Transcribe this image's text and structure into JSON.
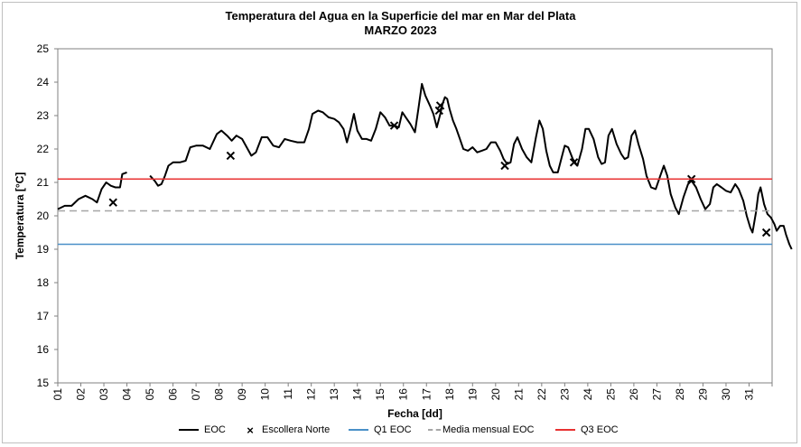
{
  "chart_data": {
    "type": "line",
    "title": "Temperatura del Agua en la Superficie del mar en Mar del Plata",
    "subtitle": "MARZO 2023",
    "xlabel": "Fecha [dd]",
    "ylabel": "Temperatura [°C]",
    "xlim": [
      1,
      32
    ],
    "ylim": [
      15,
      25
    ],
    "x_ticks": [
      "01",
      "02",
      "03",
      "04",
      "05",
      "06",
      "07",
      "08",
      "09",
      "10",
      "11",
      "12",
      "13",
      "14",
      "15",
      "16",
      "17",
      "18",
      "19",
      "20",
      "21",
      "22",
      "23",
      "24",
      "25",
      "26",
      "27",
      "28",
      "29",
      "30",
      "31"
    ],
    "y_ticks": [
      15,
      16,
      17,
      18,
      19,
      20,
      21,
      22,
      23,
      24,
      25
    ],
    "grid": false,
    "legend_position": "bottom",
    "series": [
      {
        "name": "EOC",
        "kind": "line",
        "color": "#000000",
        "segments": [
          [
            [
              1.0,
              20.2
            ],
            [
              1.3,
              20.3
            ],
            [
              1.6,
              20.3
            ],
            [
              1.9,
              20.5
            ],
            [
              2.2,
              20.6
            ],
            [
              2.5,
              20.5
            ],
            [
              2.7,
              20.4
            ],
            [
              2.9,
              20.8
            ],
            [
              3.1,
              21.0
            ],
            [
              3.3,
              20.9
            ],
            [
              3.5,
              20.85
            ],
            [
              3.7,
              20.85
            ],
            [
              3.8,
              21.25
            ],
            [
              4.0,
              21.3
            ]
          ],
          [
            [
              5.0,
              21.2
            ],
            [
              5.2,
              21.05
            ],
            [
              5.35,
              20.9
            ],
            [
              5.5,
              20.95
            ],
            [
              5.65,
              21.2
            ],
            [
              5.8,
              21.5
            ],
            [
              6.0,
              21.6
            ],
            [
              6.3,
              21.6
            ],
            [
              6.55,
              21.65
            ],
            [
              6.75,
              22.05
            ],
            [
              7.0,
              22.1
            ],
            [
              7.3,
              22.1
            ],
            [
              7.6,
              22.0
            ],
            [
              7.9,
              22.45
            ],
            [
              8.1,
              22.55
            ],
            [
              8.35,
              22.4
            ],
            [
              8.55,
              22.25
            ],
            [
              8.75,
              22.4
            ],
            [
              9.0,
              22.3
            ],
            [
              9.2,
              22.05
            ],
            [
              9.4,
              21.8
            ],
            [
              9.6,
              21.9
            ],
            [
              9.85,
              22.35
            ],
            [
              10.1,
              22.35
            ],
            [
              10.35,
              22.1
            ],
            [
              10.6,
              22.05
            ],
            [
              10.85,
              22.3
            ],
            [
              11.1,
              22.25
            ],
            [
              11.4,
              22.2
            ],
            [
              11.7,
              22.2
            ],
            [
              11.9,
              22.6
            ],
            [
              12.05,
              23.05
            ],
            [
              12.3,
              23.15
            ],
            [
              12.5,
              23.1
            ],
            [
              12.75,
              22.95
            ],
            [
              13.0,
              22.9
            ],
            [
              13.2,
              22.8
            ],
            [
              13.4,
              22.6
            ],
            [
              13.55,
              22.2
            ],
            [
              13.7,
              22.6
            ],
            [
              13.85,
              23.05
            ],
            [
              14.0,
              22.55
            ],
            [
              14.2,
              22.3
            ],
            [
              14.4,
              22.3
            ],
            [
              14.6,
              22.25
            ],
            [
              14.8,
              22.6
            ],
            [
              15.0,
              23.1
            ],
            [
              15.2,
              22.95
            ],
            [
              15.4,
              22.7
            ],
            [
              15.6,
              22.7
            ],
            [
              15.8,
              22.65
            ],
            [
              15.95,
              23.1
            ],
            [
              16.1,
              22.95
            ],
            [
              16.3,
              22.75
            ],
            [
              16.5,
              22.5
            ],
            [
              16.65,
              23.2
            ],
            [
              16.8,
              23.95
            ],
            [
              16.95,
              23.6
            ],
            [
              17.15,
              23.3
            ],
            [
              17.3,
              23.05
            ],
            [
              17.45,
              22.65
            ],
            [
              17.6,
              23.05
            ],
            [
              17.7,
              23.35
            ],
            [
              17.8,
              23.55
            ],
            [
              17.9,
              23.5
            ],
            [
              18.0,
              23.2
            ],
            [
              18.15,
              22.85
            ],
            [
              18.3,
              22.6
            ],
            [
              18.45,
              22.3
            ],
            [
              18.6,
              22.0
            ],
            [
              18.8,
              21.95
            ],
            [
              19.0,
              22.05
            ],
            [
              19.2,
              21.9
            ],
            [
              19.4,
              21.95
            ],
            [
              19.6,
              22.0
            ],
            [
              19.8,
              22.2
            ],
            [
              20.0,
              22.2
            ],
            [
              20.2,
              21.95
            ],
            [
              20.35,
              21.7
            ],
            [
              20.5,
              21.55
            ],
            [
              20.65,
              21.6
            ],
            [
              20.8,
              22.15
            ],
            [
              20.95,
              22.35
            ],
            [
              21.15,
              22.0
            ],
            [
              21.35,
              21.75
            ],
            [
              21.55,
              21.6
            ],
            [
              21.75,
              22.35
            ],
            [
              21.9,
              22.85
            ],
            [
              22.05,
              22.6
            ],
            [
              22.2,
              21.95
            ],
            [
              22.35,
              21.5
            ],
            [
              22.5,
              21.3
            ],
            [
              22.7,
              21.3
            ],
            [
              22.85,
              21.7
            ],
            [
              23.0,
              22.1
            ],
            [
              23.15,
              22.05
            ],
            [
              23.35,
              21.7
            ],
            [
              23.55,
              21.5
            ],
            [
              23.75,
              22.0
            ],
            [
              23.9,
              22.6
            ],
            [
              24.05,
              22.6
            ],
            [
              24.25,
              22.3
            ],
            [
              24.45,
              21.75
            ],
            [
              24.6,
              21.55
            ],
            [
              24.75,
              21.6
            ],
            [
              24.9,
              22.4
            ],
            [
              25.05,
              22.6
            ],
            [
              25.25,
              22.15
            ],
            [
              25.45,
              21.85
            ],
            [
              25.6,
              21.7
            ],
            [
              25.75,
              21.75
            ],
            [
              25.9,
              22.4
            ],
            [
              26.05,
              22.55
            ],
            [
              26.2,
              22.15
            ],
            [
              26.4,
              21.7
            ],
            [
              26.55,
              21.2
            ],
            [
              26.75,
              20.85
            ],
            [
              26.95,
              20.8
            ],
            [
              27.15,
              21.2
            ],
            [
              27.3,
              21.5
            ],
            [
              27.45,
              21.2
            ],
            [
              27.6,
              20.65
            ],
            [
              27.8,
              20.25
            ],
            [
              27.95,
              20.05
            ],
            [
              28.15,
              20.55
            ],
            [
              28.35,
              20.95
            ],
            [
              28.5,
              21.05
            ],
            [
              28.7,
              20.85
            ],
            [
              28.9,
              20.5
            ],
            [
              29.1,
              20.2
            ],
            [
              29.3,
              20.35
            ],
            [
              29.45,
              20.85
            ],
            [
              29.6,
              20.95
            ],
            [
              29.8,
              20.85
            ],
            [
              30.0,
              20.75
            ],
            [
              30.2,
              20.7
            ],
            [
              30.4,
              20.95
            ],
            [
              30.55,
              20.8
            ],
            [
              30.75,
              20.45
            ],
            [
              30.9,
              20.0
            ],
            [
              31.05,
              19.65
            ],
            [
              31.15,
              19.5
            ],
            [
              31.3,
              20.1
            ],
            [
              31.4,
              20.65
            ],
            [
              31.5,
              20.85
            ],
            [
              31.65,
              20.35
            ],
            [
              31.8,
              20.05
            ],
            [
              31.95,
              19.95
            ],
            [
              32.1,
              19.75
            ],
            [
              32.2,
              19.55
            ],
            [
              32.35,
              19.7
            ],
            [
              32.5,
              19.7
            ],
            [
              32.6,
              19.45
            ],
            [
              32.75,
              19.15
            ],
            [
              32.85,
              19.0
            ]
          ]
        ]
      },
      {
        "name": "Escollera Norte",
        "kind": "markers",
        "color": "#000000",
        "points": [
          [
            3.4,
            20.4
          ],
          [
            8.5,
            21.8
          ],
          [
            15.6,
            22.7
          ],
          [
            17.55,
            23.15
          ],
          [
            17.6,
            23.3
          ],
          [
            20.4,
            21.5
          ],
          [
            23.4,
            21.6
          ],
          [
            28.5,
            21.1
          ],
          [
            31.75,
            19.5
          ]
        ]
      },
      {
        "name": "Q1 EOC",
        "kind": "hline",
        "color": "#4a90c8",
        "value": 19.15
      },
      {
        "name": "Media mensual EOC",
        "kind": "hline",
        "color": "#a6a6a6",
        "dash": true,
        "value": 20.15
      },
      {
        "name": "Q3  EOC",
        "kind": "hline",
        "color": "#e83232",
        "value": 21.1
      }
    ]
  },
  "legend": {
    "eoc": "EOC",
    "escollera": "Escollera Norte",
    "q1": "Q1 EOC",
    "media": "Media mensual EOC",
    "q3": "Q3  EOC"
  }
}
